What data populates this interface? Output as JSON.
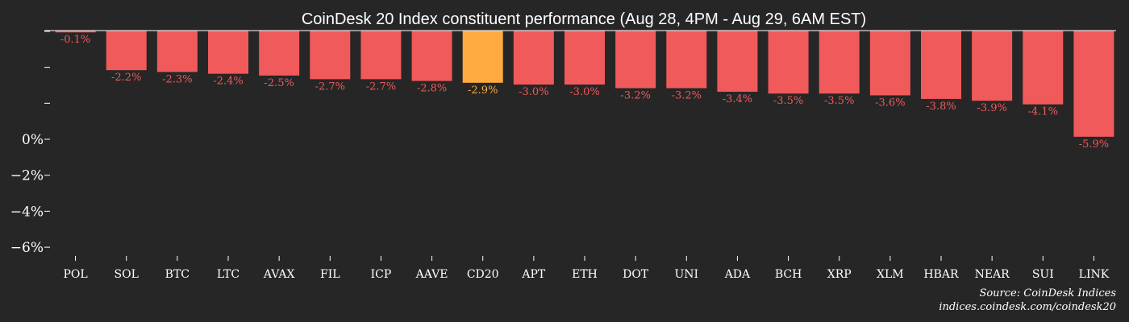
{
  "chart_data": {
    "type": "bar",
    "title": "CoinDesk 20 Index constituent performance (Aug 28, 4PM - Aug 29, 6AM EST)",
    "categories": [
      "POL",
      "SOL",
      "BTC",
      "LTC",
      "AVAX",
      "FIL",
      "ICP",
      "AAVE",
      "CD20",
      "APT",
      "ETH",
      "DOT",
      "UNI",
      "ADA",
      "BCH",
      "XRP",
      "XLM",
      "HBAR",
      "NEAR",
      "SUI",
      "LINK"
    ],
    "values": [
      -0.1,
      -2.2,
      -2.3,
      -2.4,
      -2.5,
      -2.7,
      -2.7,
      -2.8,
      -2.9,
      -3.0,
      -3.0,
      -3.2,
      -3.2,
      -3.4,
      -3.5,
      -3.5,
      -3.6,
      -3.8,
      -3.9,
      -4.1,
      -5.9
    ],
    "data_labels": [
      "-0.1%",
      "-2.2%",
      "-2.3%",
      "-2.4%",
      "-2.5%",
      "-2.7%",
      "-2.7%",
      "-2.8%",
      "-2.9%",
      "-3.0%",
      "-3.0%",
      "-3.2%",
      "-3.2%",
      "-3.4%",
      "-3.5%",
      "-3.5%",
      "-3.6%",
      "-3.8%",
      "-3.9%",
      "-4.1%",
      "-5.9%"
    ],
    "highlight_category": "CD20",
    "y_ticks": [
      {
        "value": 6,
        "label": ""
      },
      {
        "value": 4,
        "label": ""
      },
      {
        "value": 2,
        "label": ""
      },
      {
        "value": 0,
        "label": "0%"
      },
      {
        "value": -2,
        "label": "−2%"
      },
      {
        "value": -4,
        "label": "−4%"
      },
      {
        "value": -6,
        "label": "−6%"
      }
    ],
    "ylim": [
      -6.4,
      6
    ],
    "xlabel": "",
    "ylabel": "",
    "grid": false,
    "legend": "none",
    "colors": {
      "background": "#262626",
      "bar": "#f05a5a",
      "highlight": "#ffab40",
      "text": "#ffffff",
      "baseline": "#ffffff"
    }
  },
  "source": {
    "line1": "Source: CoinDesk Indices",
    "line2": "indices.coindesk.com/coindesk20"
  }
}
